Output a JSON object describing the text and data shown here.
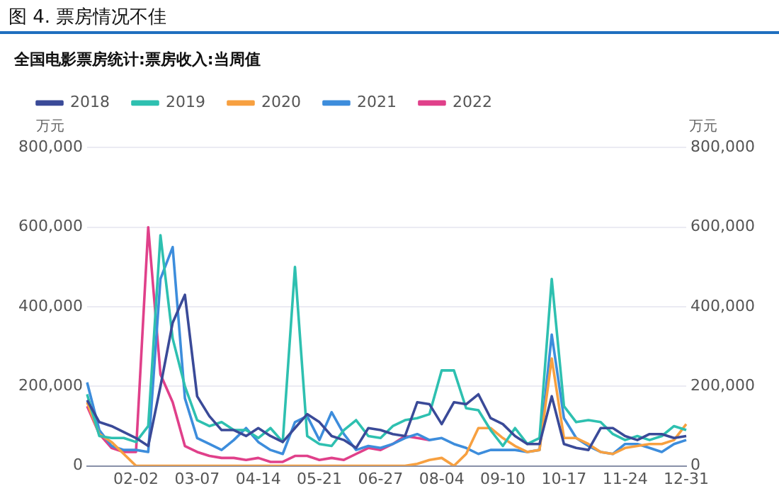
{
  "chart_data": {
    "type": "line",
    "title": "图 4. 票房情况不佳",
    "subtitle": "全国电影票房统计:票房收入:当周值",
    "ylabel": "万元",
    "y2label": "万元",
    "categories": [
      null,
      null,
      null,
      null,
      "02-02",
      null,
      null,
      null,
      null,
      "03-07",
      null,
      null,
      null,
      null,
      "04-14",
      null,
      null,
      null,
      null,
      "05-21",
      null,
      null,
      null,
      null,
      "06-27",
      null,
      null,
      null,
      null,
      "08-04",
      null,
      null,
      null,
      null,
      "09-10",
      null,
      null,
      null,
      null,
      "10-17",
      null,
      null,
      null,
      null,
      "11-24",
      null,
      null,
      null,
      null,
      "12-31"
    ],
    "series": [
      {
        "name": "2018",
        "color": "#3a4a98",
        "values": [
          165000,
          110000,
          100000,
          85000,
          70000,
          50000,
          200000,
          360000,
          430000,
          175000,
          125000,
          90000,
          90000,
          75000,
          95000,
          75000,
          60000,
          95000,
          130000,
          110000,
          75000,
          65000,
          45000,
          95000,
          90000,
          80000,
          75000,
          160000,
          155000,
          105000,
          160000,
          155000,
          180000,
          120000,
          105000,
          75000,
          55000,
          55000,
          175000,
          55000,
          45000,
          40000,
          95000,
          95000,
          75000,
          65000,
          80000,
          80000,
          70000,
          75000
        ]
      },
      {
        "name": "2019",
        "color": "#2ec0b0",
        "values": [
          180000,
          75000,
          70000,
          70000,
          60000,
          100000,
          580000,
          320000,
          200000,
          115000,
          100000,
          110000,
          90000,
          90000,
          70000,
          95000,
          60000,
          500000,
          75000,
          55000,
          50000,
          90000,
          115000,
          75000,
          70000,
          100000,
          115000,
          120000,
          130000,
          240000,
          240000,
          145000,
          140000,
          90000,
          50000,
          95000,
          55000,
          70000,
          470000,
          150000,
          110000,
          115000,
          110000,
          80000,
          65000,
          75000,
          65000,
          75000,
          100000,
          90000
        ]
      },
      {
        "name": "2020",
        "color": "#f7a040",
        "values": [
          160000,
          80000,
          60000,
          30000,
          0,
          0,
          0,
          0,
          0,
          0,
          0,
          0,
          0,
          0,
          0,
          0,
          0,
          0,
          0,
          0,
          0,
          0,
          0,
          0,
          0,
          0,
          0,
          5000,
          15000,
          20000,
          0,
          30000,
          95000,
          95000,
          70000,
          50000,
          35000,
          40000,
          270000,
          70000,
          70000,
          55000,
          35000,
          30000,
          45000,
          50000,
          55000,
          55000,
          65000,
          105000
        ]
      },
      {
        "name": "2021",
        "color": "#3d8ddc",
        "values": [
          210000,
          90000,
          50000,
          40000,
          40000,
          35000,
          470000,
          550000,
          170000,
          70000,
          55000,
          40000,
          65000,
          95000,
          60000,
          40000,
          30000,
          110000,
          125000,
          65000,
          135000,
          80000,
          40000,
          50000,
          45000,
          55000,
          70000,
          80000,
          65000,
          70000,
          55000,
          45000,
          30000,
          40000,
          40000,
          40000,
          35000,
          40000,
          330000,
          120000,
          70000,
          50000,
          35000,
          30000,
          55000,
          55000,
          45000,
          35000,
          55000,
          65000
        ]
      },
      {
        "name": "2022",
        "color": "#e0408a",
        "values": [
          150000,
          80000,
          45000,
          35000,
          35000,
          600000,
          230000,
          160000,
          50000,
          35000,
          25000,
          20000,
          20000,
          15000,
          20000,
          10000,
          10000,
          25000,
          25000,
          15000,
          20000,
          15000,
          30000,
          45000,
          40000,
          55000,
          75000,
          70000,
          65000,
          null,
          null,
          null,
          null,
          null,
          null,
          null,
          null,
          null,
          null,
          null,
          null,
          null,
          null,
          null,
          null,
          null,
          null,
          null,
          null,
          null
        ]
      }
    ],
    "ylim": [
      0,
      800000
    ],
    "yticks": [
      {
        "value": 0,
        "label": "0"
      },
      {
        "value": 200000,
        "label": "200,000"
      },
      {
        "value": 400000,
        "label": "400,000"
      },
      {
        "value": 600000,
        "label": "600,000"
      },
      {
        "value": 800000,
        "label": "800,000"
      }
    ],
    "y2lim": [
      0,
      800000
    ],
    "y2ticks": [
      {
        "value": 0,
        "label": "0"
      },
      {
        "value": 200000,
        "label": "200,000"
      },
      {
        "value": 400000,
        "label": "400,000"
      },
      {
        "value": 600000,
        "label": "600,000"
      },
      {
        "value": 800000,
        "label": "800,000"
      }
    ],
    "grid": "y",
    "legend": "top left",
    "marker": "none",
    "line_style": "solid"
  }
}
